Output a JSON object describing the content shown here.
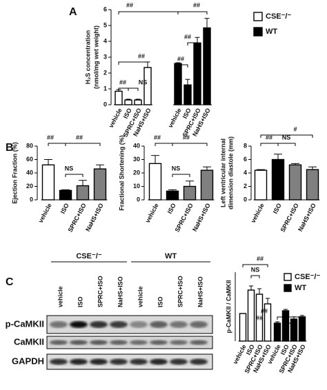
{
  "chart_data": [
    {
      "type": "bar",
      "panel_label": "A",
      "ylabel": [
        "H₂S concentration",
        "(nmol/mg wet weight)"
      ],
      "categories": [
        "vehicle",
        "ISO",
        "SPRC+ISO",
        "NaHS+ISO"
      ],
      "series": [
        {
          "name": "CSE⁻/⁻",
          "color": "#ffffff",
          "values": [
            0.85,
            0.3,
            0.3,
            2.35
          ],
          "errors": [
            0.1,
            0.05,
            0.05,
            0.35
          ]
        },
        {
          "name": "WT",
          "color": "#000000",
          "values": [
            2.6,
            1.25,
            3.9,
            4.85
          ],
          "errors": [
            0.05,
            0.35,
            0.35,
            0.6
          ]
        }
      ],
      "ylim": [
        0,
        6
      ],
      "yticks": [
        0,
        1,
        2,
        3,
        4,
        5,
        6
      ],
      "annotations": [
        "##",
        "##",
        "##",
        "##",
        "NS",
        "##",
        "##"
      ]
    },
    {
      "type": "bar",
      "ylabel": [
        "Ejection Fraction (%)"
      ],
      "categories": [
        "vehicle",
        "ISO",
        "SPRC+ISO",
        "NaHS+ISO"
      ],
      "series": [
        {
          "colors": [
            "#ffffff",
            "#000000",
            "#808080",
            "#808080"
          ],
          "values": [
            52,
            14,
            21,
            46
          ],
          "errors": [
            8,
            1,
            8,
            6
          ]
        }
      ],
      "ylim": [
        0,
        80
      ],
      "yticks": [
        0,
        20,
        40,
        60,
        80
      ],
      "annotations": [
        "##",
        "##",
        "NS"
      ]
    },
    {
      "type": "bar",
      "ylabel": [
        "Fractional Shortening (%)"
      ],
      "categories": [
        "vehicle",
        "ISO",
        "SPRC+ISO",
        "NaHS+ISO"
      ],
      "series": [
        {
          "colors": [
            "#ffffff",
            "#000000",
            "#808080",
            "#808080"
          ],
          "values": [
            27,
            6.5,
            10,
            22
          ],
          "errors": [
            6,
            1,
            4,
            2.5
          ]
        }
      ],
      "ylim": [
        0,
        40
      ],
      "yticks": [
        0,
        10,
        20,
        30,
        40
      ],
      "annotations": [
        "##",
        "##",
        "NS"
      ]
    },
    {
      "type": "bar",
      "panel_label": "B",
      "ylabel": [
        "Left ventricular internal",
        "dimension diastole (mm)"
      ],
      "categories": [
        "vehicle",
        "ISO",
        "SPRC+ISO",
        "NaHS+ISO"
      ],
      "series": [
        {
          "colors": [
            "#ffffff",
            "#000000",
            "#808080",
            "#808080"
          ],
          "values": [
            4.4,
            6.0,
            5.2,
            4.5
          ],
          "errors": [
            0.1,
            0.8,
            0.2,
            0.4
          ]
        }
      ],
      "ylim": [
        0,
        8
      ],
      "yticks": [
        0,
        2,
        4,
        6,
        8
      ],
      "annotations": [
        "##",
        "#",
        "NS"
      ]
    },
    {
      "type": "bar",
      "panel_label": "C",
      "ylabel": [
        "p-CaMKII / CaMKII"
      ],
      "categories": [
        "vehicle",
        "ISO",
        "SPRC+ISO",
        "NaHS+ISO"
      ],
      "series": [
        {
          "name": "CSE⁻/⁻",
          "color": "#ffffff",
          "values": [
            1.0,
            1.85,
            1.7,
            1.35
          ],
          "errors": [
            0,
            0.15,
            0.2,
            0.2
          ]
        },
        {
          "name": "WT",
          "color": "#000000",
          "values": [
            0.65,
            1.1,
            0.8,
            0.88
          ],
          "errors": [
            0.05,
            0.05,
            0.08,
            0.05
          ]
        }
      ],
      "ylim": [
        0,
        2.5
      ],
      "annotations": [
        "##",
        "NS",
        "##",
        "##"
      ]
    }
  ],
  "blot": {
    "groups": [
      "CSE⁻/⁻",
      "WT"
    ],
    "lanes": [
      "vehicle",
      "ISO",
      "SPRC+ISO",
      "NaHS+ISO",
      "vehicle",
      "ISO",
      "SPRC+ISO",
      "NaHS+ISO"
    ],
    "rows": [
      "p-CaMKII",
      "CaMKII",
      "GAPDH"
    ]
  }
}
